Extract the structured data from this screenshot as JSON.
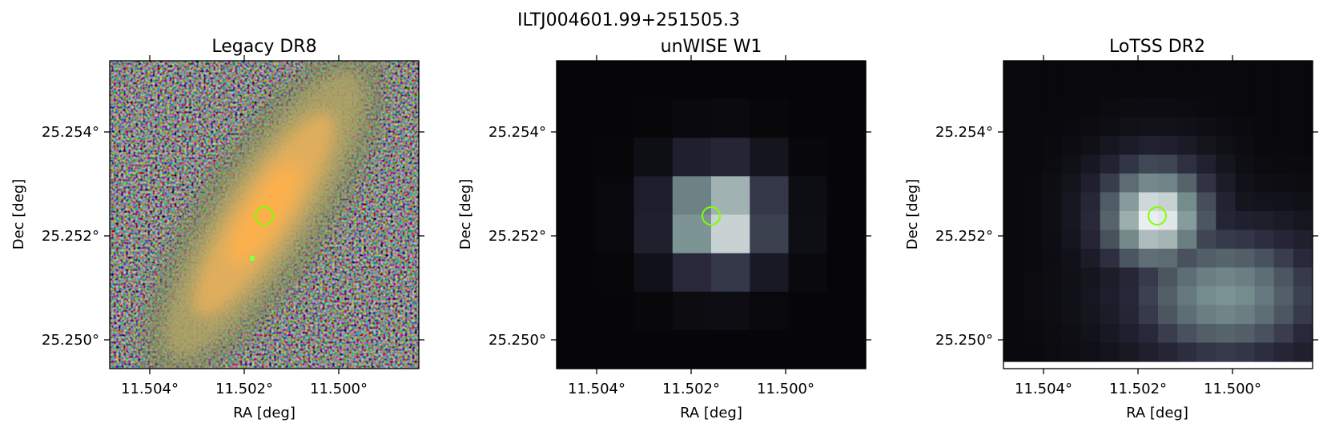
{
  "figure": {
    "title": "ILTJ004601.99+251505.3",
    "panels": [
      {
        "title": "Legacy DR8",
        "xlabel": "RA [deg]",
        "ylabel": "Dec [deg]",
        "xticks": [
          "11.504°",
          "11.502°",
          "11.500°"
        ],
        "yticks": [
          "25.254°",
          "25.252°",
          "25.250°"
        ],
        "marker": "green circle"
      },
      {
        "title": "unWISE W1",
        "xlabel": "RA [deg]",
        "ylabel": "Dec [deg]",
        "xticks": [
          "11.504°",
          "11.502°",
          "11.500°"
        ],
        "yticks": [
          "25.254°",
          "25.252°",
          "25.250°"
        ],
        "marker": "green circle"
      },
      {
        "title": "LoTSS DR2",
        "xlabel": "RA [deg]",
        "ylabel": "Dec [deg]",
        "xticks": [
          "11.504°",
          "11.502°",
          "11.500°"
        ],
        "yticks": [
          "25.254°",
          "25.252°",
          "25.250°"
        ],
        "marker": "green circle"
      }
    ],
    "colors": {
      "marker": "#7fff00",
      "legacy_core": "#ffb04a",
      "wise_peak": "#ffffff",
      "lotss_peak": "#f2f8f7"
    }
  }
}
